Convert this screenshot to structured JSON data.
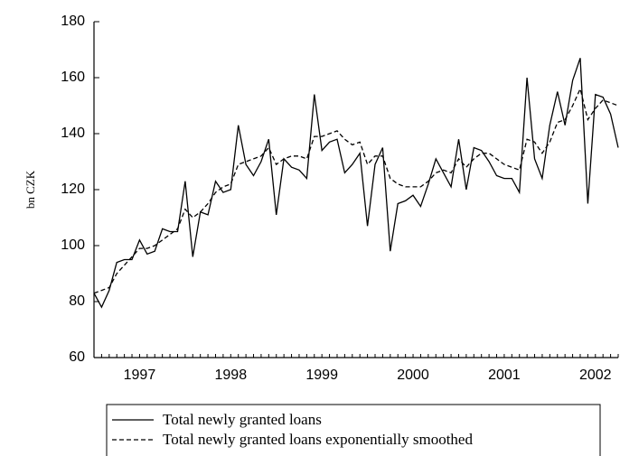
{
  "chart_data": {
    "type": "line",
    "y_label": "bn CZK",
    "categories": [
      null,
      null,
      null,
      null,
      null,
      null,
      "1997",
      null,
      null,
      null,
      null,
      null,
      null,
      null,
      null,
      null,
      null,
      null,
      "1998",
      null,
      null,
      null,
      null,
      null,
      null,
      null,
      null,
      null,
      null,
      null,
      "1999",
      null,
      null,
      null,
      null,
      null,
      null,
      null,
      null,
      null,
      null,
      null,
      "2000",
      null,
      null,
      null,
      null,
      null,
      null,
      null,
      null,
      null,
      null,
      null,
      "2001",
      null,
      null,
      null,
      null,
      null,
      null,
      null,
      null,
      null,
      null,
      null,
      "2002",
      null,
      null,
      null
    ],
    "series": [
      {
        "name": "Total newly granted loans",
        "color": "#000000",
        "dash": false,
        "values": [
          83,
          78,
          84,
          94,
          95,
          95,
          102,
          97,
          98,
          106,
          105,
          105,
          123,
          96,
          112,
          111,
          123,
          119,
          120,
          143,
          129,
          125,
          130,
          138,
          111,
          131,
          128,
          127,
          124,
          154,
          134,
          137,
          138,
          126,
          129,
          133,
          107,
          129,
          135,
          98,
          115,
          116,
          118,
          114,
          122,
          131,
          126,
          121,
          138,
          120,
          135,
          134,
          130,
          125,
          124,
          124,
          119,
          160,
          131,
          124,
          143,
          155,
          143,
          159,
          167,
          115,
          154,
          153,
          147,
          135
        ]
      },
      {
        "name": "Total newly granted loans exponentially smoothed",
        "color": "#000000",
        "dash": true,
        "values": [
          83,
          84,
          85,
          90,
          93,
          96,
          99,
          99,
          100,
          102,
          104,
          106,
          113,
          110,
          112,
          115,
          119,
          121,
          122,
          129,
          130,
          131,
          132,
          135,
          129,
          131,
          132,
          132,
          131,
          139,
          139,
          140,
          141,
          138,
          136,
          137,
          129,
          132,
          132,
          124,
          122,
          121,
          121,
          121,
          123,
          126,
          127,
          126,
          131,
          128,
          131,
          133,
          133,
          131,
          129,
          128,
          127,
          138,
          137,
          133,
          137,
          144,
          145,
          150,
          156,
          145,
          149,
          152,
          151,
          150
        ]
      }
    ],
    "ylim": [
      60,
      180
    ],
    "yticks": [
      60,
      80,
      100,
      120,
      140,
      160,
      180
    ],
    "grid": false
  }
}
